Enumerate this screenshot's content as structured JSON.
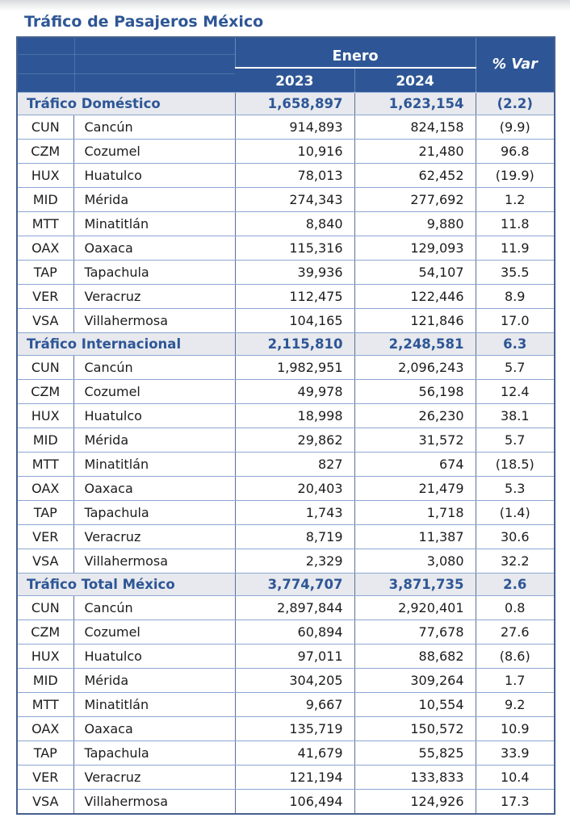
{
  "page": {
    "title": "Tráfico de Pasajeros México"
  },
  "colors": {
    "header_bg": "#2E5696",
    "accent_text": "#2E5696",
    "section_row_bg": "#E7E9EE",
    "grid_horizontal": "#8CA6D2",
    "grid_vertical": "#5D6F97"
  },
  "table": {
    "header": {
      "month_group": "Enero",
      "col_2023": "2023",
      "col_2024": "2024",
      "col_var": "% Var"
    },
    "sections": [
      {
        "label": "Tráfico Doméstico",
        "totals": {
          "y2023": "1,658,897",
          "y2024": "1,623,154",
          "var": "(2.2)"
        },
        "rows": [
          {
            "code": "CUN",
            "name": "Cancún",
            "y2023": "914,893",
            "y2024": "824,158",
            "var": "(9.9)"
          },
          {
            "code": "CZM",
            "name": "Cozumel",
            "y2023": "10,916",
            "y2024": "21,480",
            "var": "96.8"
          },
          {
            "code": "HUX",
            "name": "Huatulco",
            "y2023": "78,013",
            "y2024": "62,452",
            "var": "(19.9)"
          },
          {
            "code": "MID",
            "name": "Mérida",
            "y2023": "274,343",
            "y2024": "277,692",
            "var": "1.2"
          },
          {
            "code": "MTT",
            "name": "Minatitlán",
            "y2023": "8,840",
            "y2024": "9,880",
            "var": "11.8"
          },
          {
            "code": "OAX",
            "name": "Oaxaca",
            "y2023": "115,316",
            "y2024": "129,093",
            "var": "11.9"
          },
          {
            "code": "TAP",
            "name": "Tapachula",
            "y2023": "39,936",
            "y2024": "54,107",
            "var": "35.5"
          },
          {
            "code": "VER",
            "name": "Veracruz",
            "y2023": "112,475",
            "y2024": "122,446",
            "var": "8.9"
          },
          {
            "code": "VSA",
            "name": "Villahermosa",
            "y2023": "104,165",
            "y2024": "121,846",
            "var": "17.0"
          }
        ]
      },
      {
        "label": "Tráfico Internacional",
        "totals": {
          "y2023": "2,115,810",
          "y2024": "2,248,581",
          "var": "6.3"
        },
        "rows": [
          {
            "code": "CUN",
            "name": "Cancún",
            "y2023": "1,982,951",
            "y2024": "2,096,243",
            "var": "5.7"
          },
          {
            "code": "CZM",
            "name": "Cozumel",
            "y2023": "49,978",
            "y2024": "56,198",
            "var": "12.4"
          },
          {
            "code": "HUX",
            "name": "Huatulco",
            "y2023": "18,998",
            "y2024": "26,230",
            "var": "38.1"
          },
          {
            "code": "MID",
            "name": "Mérida",
            "y2023": "29,862",
            "y2024": "31,572",
            "var": "5.7"
          },
          {
            "code": "MTT",
            "name": "Minatitlán",
            "y2023": "827",
            "y2024": "674",
            "var": "(18.5)"
          },
          {
            "code": "OAX",
            "name": "Oaxaca",
            "y2023": "20,403",
            "y2024": "21,479",
            "var": "5.3"
          },
          {
            "code": "TAP",
            "name": "Tapachula",
            "y2023": "1,743",
            "y2024": "1,718",
            "var": "(1.4)"
          },
          {
            "code": "VER",
            "name": "Veracruz",
            "y2023": "8,719",
            "y2024": "11,387",
            "var": "30.6"
          },
          {
            "code": "VSA",
            "name": "Villahermosa",
            "y2023": "2,329",
            "y2024": "3,080",
            "var": "32.2"
          }
        ]
      },
      {
        "label": "Tráfico Total México",
        "totals": {
          "y2023": "3,774,707",
          "y2024": "3,871,735",
          "var": "2.6"
        },
        "rows": [
          {
            "code": "CUN",
            "name": "Cancún",
            "y2023": "2,897,844",
            "y2024": "2,920,401",
            "var": "0.8"
          },
          {
            "code": "CZM",
            "name": "Cozumel",
            "y2023": "60,894",
            "y2024": "77,678",
            "var": "27.6"
          },
          {
            "code": "HUX",
            "name": "Huatulco",
            "y2023": "97,011",
            "y2024": "88,682",
            "var": "(8.6)"
          },
          {
            "code": "MID",
            "name": "Mérida",
            "y2023": "304,205",
            "y2024": "309,264",
            "var": "1.7"
          },
          {
            "code": "MTT",
            "name": "Minatitlán",
            "y2023": "9,667",
            "y2024": "10,554",
            "var": "9.2"
          },
          {
            "code": "OAX",
            "name": "Oaxaca",
            "y2023": "135,719",
            "y2024": "150,572",
            "var": "10.9"
          },
          {
            "code": "TAP",
            "name": "Tapachula",
            "y2023": "41,679",
            "y2024": "55,825",
            "var": "33.9"
          },
          {
            "code": "VER",
            "name": "Veracruz",
            "y2023": "121,194",
            "y2024": "133,833",
            "var": "10.4"
          },
          {
            "code": "VSA",
            "name": "Villahermosa",
            "y2023": "106,494",
            "y2024": "124,926",
            "var": "17.3"
          }
        ]
      }
    ]
  }
}
